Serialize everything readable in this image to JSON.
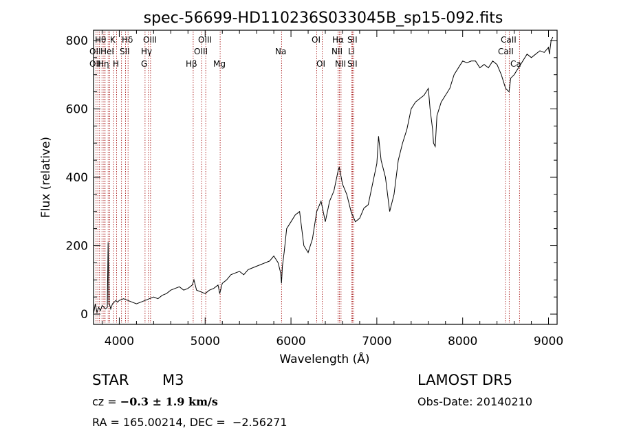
{
  "chart_data": {
    "type": "line",
    "title": "spec-56699-HD110236S033045B_sp15-092.fits",
    "xlabel": "Wavelength (Å)",
    "ylabel": "Flux (relative)",
    "xlim": [
      3700,
      9100
    ],
    "ylim": [
      -30,
      830
    ],
    "xticks": [
      4000,
      5000,
      6000,
      7000,
      8000,
      9000
    ],
    "yticks": [
      0,
      200,
      400,
      600,
      800
    ],
    "grid": false,
    "line_color": "#000000",
    "marker_color": "#a00000",
    "series": [
      {
        "x": [
          3700,
          3720,
          3740,
          3760,
          3780,
          3800,
          3820,
          3840,
          3860,
          3870,
          3880,
          3890,
          3900,
          3920,
          3940,
          3960,
          3980,
          4000,
          4050,
          4100,
          4150,
          4200,
          4250,
          4300,
          4350,
          4400,
          4450,
          4500,
          4550,
          4600,
          4650,
          4700,
          4750,
          4800,
          4850,
          4870,
          4900,
          4950,
          5000,
          5050,
          5100,
          5150,
          5170,
          5200,
          5250,
          5300,
          5350,
          5400,
          5450,
          5500,
          5550,
          5600,
          5650,
          5700,
          5750,
          5800,
          5850,
          5880,
          5890,
          5900,
          5920,
          5950,
          6000,
          6050,
          6100,
          6150,
          6200,
          6250,
          6300,
          6350,
          6400,
          6450,
          6500,
          6550,
          6563,
          6600,
          6650,
          6700,
          6750,
          6800,
          6850,
          6900,
          6950,
          7000,
          7020,
          7050,
          7100,
          7150,
          7200,
          7250,
          7300,
          7350,
          7400,
          7450,
          7500,
          7550,
          7600,
          7620,
          7650,
          7660,
          7680,
          7700,
          7750,
          7800,
          7850,
          7900,
          7950,
          8000,
          8050,
          8100,
          8150,
          8200,
          8250,
          8300,
          8350,
          8400,
          8450,
          8500,
          8540,
          8560,
          8600,
          8650,
          8700,
          8750,
          8800,
          8850,
          8900,
          8950,
          9000,
          9010,
          9030,
          9050
        ],
        "y": [
          0,
          30,
          5,
          20,
          10,
          25,
          20,
          15,
          20,
          210,
          30,
          25,
          15,
          30,
          35,
          40,
          35,
          40,
          45,
          40,
          35,
          30,
          35,
          40,
          45,
          50,
          45,
          55,
          60,
          70,
          75,
          80,
          70,
          75,
          85,
          100,
          70,
          65,
          60,
          70,
          75,
          85,
          60,
          90,
          100,
          115,
          120,
          125,
          115,
          130,
          135,
          140,
          145,
          150,
          155,
          170,
          150,
          120,
          90,
          140,
          180,
          250,
          270,
          290,
          300,
          200,
          180,
          220,
          300,
          330,
          270,
          330,
          360,
          420,
          430,
          380,
          350,
          300,
          270,
          280,
          310,
          320,
          380,
          440,
          520,
          450,
          400,
          300,
          350,
          450,
          500,
          540,
          600,
          620,
          630,
          640,
          660,
          600,
          540,
          500,
          490,
          580,
          620,
          640,
          660,
          700,
          720,
          740,
          735,
          740,
          740,
          720,
          730,
          720,
          740,
          730,
          700,
          660,
          650,
          690,
          700,
          720,
          740,
          760,
          750,
          760,
          770,
          765,
          780,
          760,
          800,
          810
        ]
      }
    ],
    "line_markers": {
      "row1": [
        "Hθ",
        "K",
        "Hδ",
        "OIII",
        "OIII",
        "OI",
        "Hα",
        "SII",
        "CaII"
      ],
      "row2": [
        "OII",
        "HeI",
        "SII",
        "Hγ",
        "OIII",
        "Na",
        "NII",
        "Li",
        "CaII"
      ],
      "row3": [
        "OII",
        "Hη",
        "H",
        "G",
        "Hβ",
        "Mg",
        "OI",
        "NII",
        "SII",
        "Ca"
      ]
    }
  },
  "info": {
    "object_class": "STAR",
    "subclass": "M3",
    "survey": "LAMOST DR5",
    "cz_label": "cz = ",
    "cz_value": "−0.3 ± 1.9 km/s",
    "obs_date": "Obs-Date: 20140210",
    "coords": "RA = 165.00214, DEC =  −2.56271"
  }
}
